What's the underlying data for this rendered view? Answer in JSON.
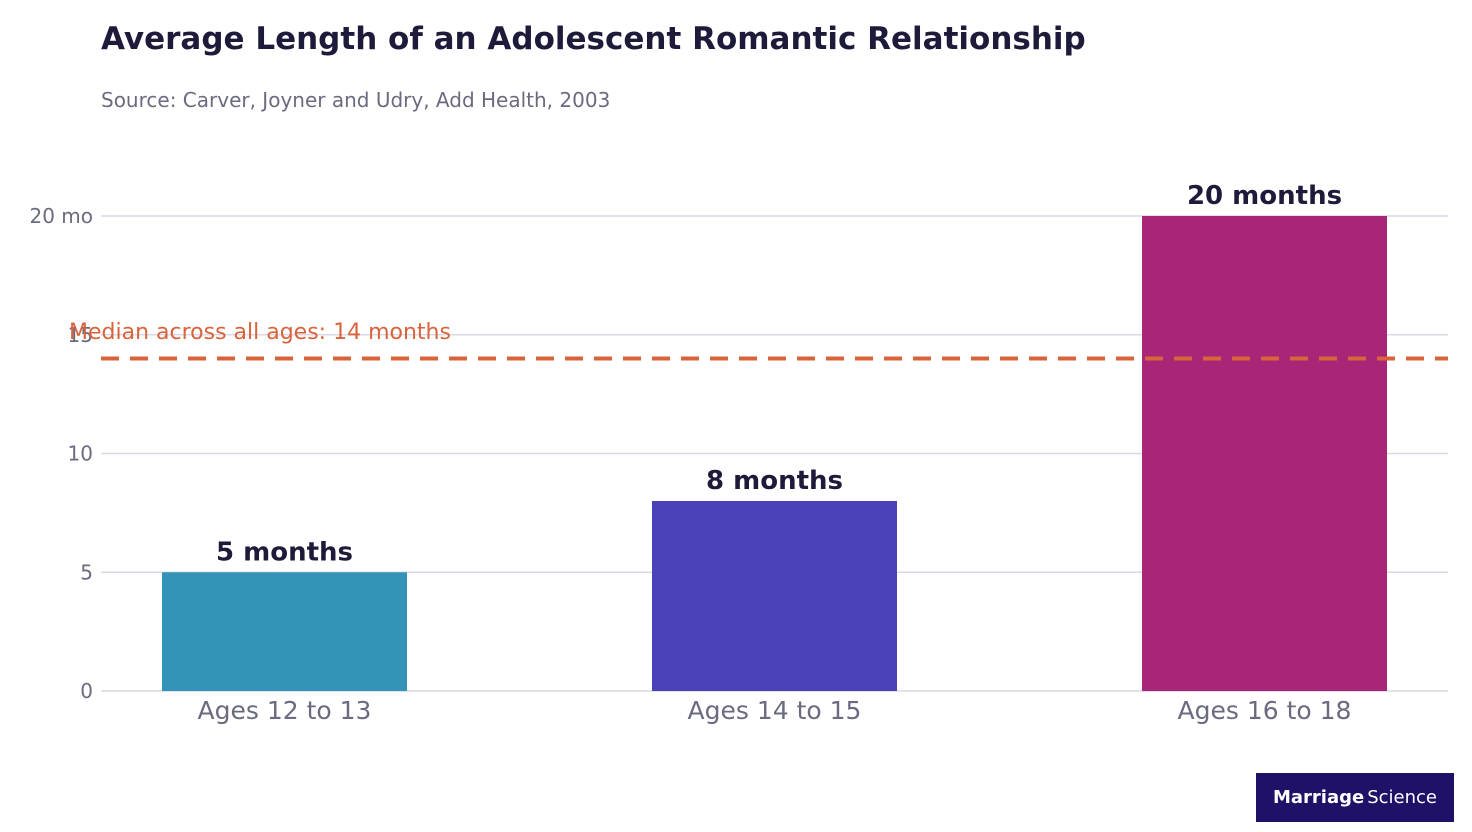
{
  "chart_data": {
    "type": "bar",
    "title": "Average Length of an Adolescent Romantic Relationship",
    "subtitle": "Source: Carver, Joyner and Udry, Add Health, 2003",
    "categories": [
      "Ages 12 to 13",
      "Ages 14 to 15",
      "Ages 16 to 18"
    ],
    "values": [
      5,
      8,
      20
    ],
    "value_labels": [
      "5 months",
      "8 months",
      "20 months"
    ],
    "bar_colors": [
      "#3393b8",
      "#4b41b8",
      "#a82577"
    ],
    "ylim": [
      0,
      20
    ],
    "yticks": [
      0,
      5,
      10,
      15,
      20
    ],
    "ytick_labels": [
      "0",
      "5",
      "10",
      "15",
      "20 mo"
    ],
    "grid": true,
    "reference_line": {
      "value": 14,
      "label": "Median across all ages: 14 months",
      "color": "#d9633b",
      "style": "dashed"
    }
  },
  "branding": {
    "logo_word_bold": "Marriage",
    "logo_word_regular": "Science",
    "logo_background": "#1f1068"
  },
  "colors": {
    "title": "#1e1b3a",
    "muted_text": "#6b6b80",
    "gridline": "#d9d9e6"
  }
}
